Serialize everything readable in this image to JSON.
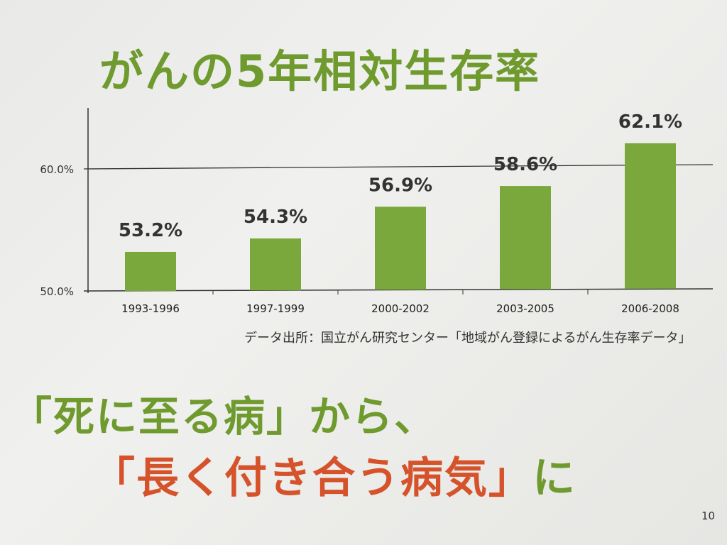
{
  "title": "がんの5年相対生存率",
  "chart_data": {
    "type": "bar",
    "title": "がんの5年相対生存率",
    "categories": [
      "1993-1996",
      "1997-1999",
      "2000-2002",
      "2003-2005",
      "2006-2008"
    ],
    "values": [
      53.2,
      54.3,
      56.9,
      58.6,
      62.1
    ],
    "value_labels": [
      "53.2%",
      "54.3%",
      "56.9%",
      "58.6%",
      "62.1%"
    ],
    "ylim": [
      50,
      65
    ],
    "yticks": [
      50,
      60
    ],
    "ytick_labels": [
      "50.0%",
      "60.0%"
    ],
    "xlabel": "",
    "ylabel": "",
    "bar_color": "#7aa83c",
    "grid": "60% line only"
  },
  "source": "データ出所：国立がん研究センター「地域がん登録によるがん生存率データ」",
  "message": {
    "line1": "「死に至る病」から、",
    "line2_red": "「長く付き合う病気」",
    "line2_green": "に"
  },
  "page_number": "10"
}
